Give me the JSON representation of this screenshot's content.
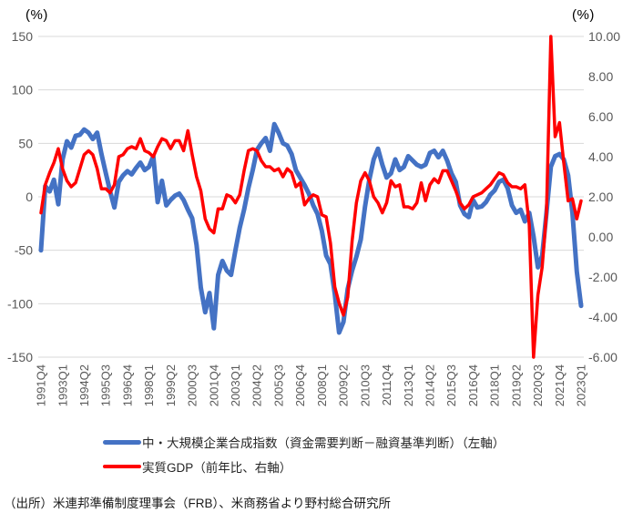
{
  "axis_units": {
    "left": "(%)",
    "right": "(%)"
  },
  "chart_data": {
    "type": "line",
    "x_start": "1991Q4",
    "x_end": "2023Q1",
    "x_frequency": "quarterly",
    "x_tick_labels": [
      "1991Q4",
      "1993Q1",
      "1994Q2",
      "1995Q3",
      "1996Q4",
      "1998Q1",
      "1999Q2",
      "2000Q3",
      "2001Q4",
      "2003Q1",
      "2004Q2",
      "2005Q3",
      "2006Q4",
      "2008Q1",
      "2009Q2",
      "2010Q3",
      "2011Q4",
      "2013Q1",
      "2014Q2",
      "2015Q3",
      "2016Q4",
      "2018Q1",
      "2019Q2",
      "2020Q3",
      "2021Q4",
      "2023Q1"
    ],
    "x_tick_interval_quarters": 5,
    "left_axis": {
      "unit": "(%)",
      "range": [
        -150,
        150
      ],
      "tick_values": [
        150,
        100,
        50,
        0,
        -50,
        -100,
        -150
      ],
      "tick_labels": [
        "150",
        "100",
        "50",
        "0",
        "-50",
        "-100",
        "-150"
      ]
    },
    "right_axis": {
      "unit": "(%)",
      "range": [
        -6,
        10
      ],
      "tick_values": [
        10,
        8,
        6,
        4,
        2,
        0,
        -2,
        -4,
        -6
      ],
      "tick_labels": [
        "10.00",
        "8.00",
        "6.00",
        "4.00",
        "2.00",
        "0.00",
        "-2.00",
        "-4.00",
        "-6.00"
      ]
    },
    "grid": true,
    "legend_position": "bottom",
    "series": [
      {
        "name": "中・大規模企業合成指数（資金需要判断－融資基準判断）（左軸）",
        "axis": "left",
        "color": "#4472C4",
        "line_width": 5,
        "values": [
          -50,
          10,
          5,
          16,
          -7,
          35,
          52,
          46,
          57,
          58,
          63,
          60,
          54,
          60,
          40,
          22,
          5,
          -10,
          14,
          20,
          24,
          21,
          27,
          32,
          25,
          28,
          38,
          -5,
          15,
          -8,
          -3,
          1,
          3,
          -3,
          -12,
          -20,
          -45,
          -85,
          -108,
          -90,
          -123,
          -73,
          -60,
          -69,
          -73,
          -50,
          -29,
          -12,
          8,
          25,
          44,
          50,
          55,
          43,
          68,
          60,
          50,
          48,
          40,
          25,
          18,
          11,
          3,
          -8,
          -16,
          -32,
          -55,
          -63,
          -91,
          -127,
          -117,
          -86,
          -69,
          -56,
          -40,
          -9,
          16,
          35,
          45,
          30,
          18,
          22,
          35,
          25,
          28,
          38,
          34,
          30,
          28,
          30,
          41,
          43,
          37,
          43,
          34,
          22,
          14,
          -8,
          -16,
          -19,
          -3,
          -10,
          -9,
          -5,
          2,
          6,
          14,
          16,
          8,
          -8,
          -15,
          -12,
          -23,
          -15,
          -37,
          -66,
          -55,
          -15,
          28,
          38,
          40,
          35,
          20,
          -15,
          -70,
          -102
        ]
      },
      {
        "name": "実質GDP（前年比、右軸）",
        "axis": "right",
        "color": "#FF0000",
        "line_width": 3.5,
        "values": [
          1.2,
          2.6,
          3.2,
          3.7,
          4.4,
          3.4,
          2.8,
          2.5,
          2.7,
          3.4,
          4.1,
          4.3,
          4.1,
          3.4,
          2.4,
          2.4,
          2.2,
          2.6,
          4.0,
          4.1,
          4.4,
          4.5,
          4.4,
          4.9,
          4.3,
          4.2,
          4.0,
          4.5,
          4.9,
          4.8,
          4.4,
          4.8,
          4.8,
          4.3,
          5.3,
          4.1,
          3.0,
          2.3,
          0.9,
          0.4,
          0.2,
          1.4,
          1.4,
          2.1,
          2.0,
          1.7,
          2.1,
          3.3,
          4.3,
          4.4,
          4.3,
          3.8,
          3.5,
          3.5,
          3.3,
          3.4,
          3.0,
          3.4,
          3.2,
          2.5,
          2.7,
          1.6,
          1.9,
          2.1,
          2.0,
          1.1,
          1.0,
          -0.3,
          -2.5,
          -3.3,
          -3.9,
          -3.0,
          -0.2,
          1.7,
          2.8,
          3.2,
          2.8,
          2.0,
          1.7,
          1.2,
          1.7,
          2.8,
          2.5,
          2.6,
          1.5,
          1.5,
          1.4,
          1.7,
          2.7,
          1.8,
          2.6,
          2.9,
          2.7,
          3.3,
          3.3,
          2.8,
          2.3,
          1.7,
          1.4,
          1.6,
          2.0,
          2.1,
          2.2,
          2.4,
          2.6,
          2.9,
          3.2,
          3.1,
          2.7,
          2.5,
          2.5,
          2.4,
          2.6,
          0.6,
          -6.0,
          -2.9,
          -1.5,
          1.2,
          10.0,
          5.0,
          5.7,
          3.7,
          1.8,
          1.9,
          0.9,
          1.8
        ]
      }
    ]
  },
  "legend": {
    "items": [
      {
        "label": "中・大規模企業合成指数（資金需要判断－融資基準判断）（左軸）",
        "color": "#4472C4"
      },
      {
        "label": "実質GDP（前年比、右軸）",
        "color": "#FF0000"
      }
    ]
  },
  "source_note": "（出所）米連邦準備制度理事会（FRB）、米商務省より野村総合研究所"
}
